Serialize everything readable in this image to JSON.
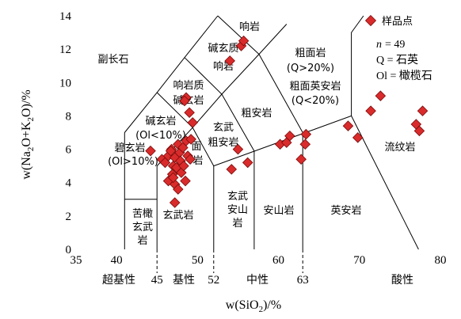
{
  "chart_data": {
    "type": "scatter",
    "title": "",
    "xlabel_parts": [
      "w(SiO",
      "2",
      ")/%"
    ],
    "ylabel_parts": [
      "w(Na",
      "2",
      "O+K",
      "2",
      "O)/%"
    ],
    "xlim": [
      35,
      80
    ],
    "ylim": [
      0,
      14
    ],
    "x_ticks": [
      35,
      40,
      50,
      60,
      70,
      80
    ],
    "y_ticks": [
      0,
      2,
      4,
      6,
      8,
      10,
      12,
      14
    ],
    "class_boundaries": [
      "45",
      "52",
      "63"
    ],
    "class_labels": [
      "超基性",
      "基性",
      "中性",
      "酸性"
    ],
    "field_labels": {
      "foidite": "副长石",
      "phonolite": "响岩",
      "tephriphonolite_1": "碱玄质",
      "tephriphonolite_2": "响岩",
      "phonotephrite_1": "响岩质",
      "phonotephrite_2": "碱玄岩",
      "tephrite_1": "碱玄岩",
      "tephrite_2": "(Ol<10%)",
      "basanite_1": "碧玄岩",
      "basanite_2": "(Ol>10%)",
      "trachyandesite": "粗安岩",
      "trachybasalt_1": "玄武",
      "trachybasalt_2": "粗安岩",
      "trachyte_1": "粗面岩",
      "trachyte_2": "(Q>20%)",
      "trachydacite_1": "粗面英安岩",
      "trachydacite_2": "(Q<20%)",
      "picrobasalt_1": "苦橄",
      "picrobasalt_2": "玄武",
      "picrobasalt_3": "岩",
      "basalt": "玄武岩",
      "basaltic_andesite_1": "玄武",
      "basaltic_andesite_2": "安山",
      "basaltic_andesite_3": "岩",
      "andesite": "安山岩",
      "dacite": "英安岩",
      "rhyolite": "流纹岩",
      "partial_1": "面",
      "partial_2": "岩"
    },
    "legend": {
      "series_name": "样品点",
      "n_label": "n",
      "n_value": "= 49",
      "q_note": "Q = 石英",
      "ol_note": "Ol = 橄榄石"
    },
    "colors": {
      "marker": "#d92b2b",
      "marker_stroke": "#7a0a0a"
    },
    "series": [
      {
        "name": "样品点",
        "points": [
          [
            44.2,
            5.9
          ],
          [
            45.6,
            5.4
          ],
          [
            46.0,
            5.2
          ],
          [
            46.4,
            5.6
          ],
          [
            46.8,
            6.0
          ],
          [
            47.0,
            5.0
          ],
          [
            47.2,
            5.5
          ],
          [
            47.6,
            6.3
          ],
          [
            47.8,
            5.8
          ],
          [
            48.2,
            6.1
          ],
          [
            48.6,
            6.5
          ],
          [
            49.2,
            6.6
          ],
          [
            48.6,
            9.1
          ],
          [
            48.4,
            8.9
          ],
          [
            49.0,
            8.2
          ],
          [
            49.4,
            7.6
          ],
          [
            46.4,
            4.1
          ],
          [
            46.9,
            4.5
          ],
          [
            47.2,
            3.9
          ],
          [
            47.6,
            3.6
          ],
          [
            48.0,
            4.6
          ],
          [
            48.5,
            4.1
          ],
          [
            47.2,
            2.8
          ],
          [
            47.4,
            4.9
          ],
          [
            47.9,
            5.3
          ],
          [
            48.3,
            5.0
          ],
          [
            47.0,
            4.3
          ],
          [
            46.7,
            5.9
          ],
          [
            48.8,
            5.6
          ],
          [
            49.1,
            5.4
          ],
          [
            54.2,
            4.8
          ],
          [
            55.0,
            6.0
          ],
          [
            56.2,
            5.2
          ],
          [
            54.0,
            11.3
          ],
          [
            55.4,
            12.2
          ],
          [
            55.7,
            12.5
          ],
          [
            60.2,
            6.3
          ],
          [
            61.0,
            6.4
          ],
          [
            61.4,
            6.8
          ],
          [
            62.8,
            5.4
          ],
          [
            63.3,
            6.3
          ],
          [
            63.4,
            6.9
          ],
          [
            68.6,
            7.4
          ],
          [
            69.8,
            6.7
          ],
          [
            71.4,
            8.3
          ],
          [
            72.6,
            9.2
          ],
          [
            77.0,
            7.5
          ],
          [
            77.4,
            7.1
          ],
          [
            77.8,
            8.3
          ]
        ]
      }
    ]
  }
}
